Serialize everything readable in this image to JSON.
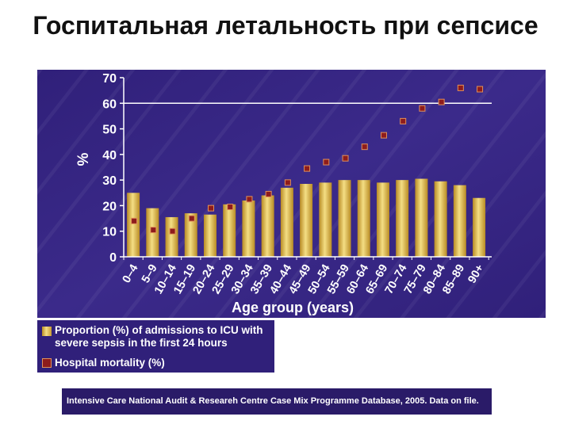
{
  "slide": {
    "title": "Госпитальная летальность при сепсисе"
  },
  "chart_data": {
    "type": "bar",
    "xlabel": "Age group (years)",
    "ylabel": "%",
    "ylim": [
      0,
      70
    ],
    "yticks": [
      0,
      10,
      20,
      30,
      40,
      50,
      60,
      70
    ],
    "hlines": [
      60
    ],
    "grid": false,
    "legend": "below-left",
    "categories": [
      "0–4",
      "5–9",
      "10–14",
      "15–19",
      "20–24",
      "25–29",
      "30–34",
      "35–39",
      "40–44",
      "45–49",
      "50–54",
      "55–59",
      "60–64",
      "65–69",
      "70–74",
      "75–79",
      "80–84",
      "85–89",
      "90+"
    ],
    "series": [
      {
        "name": "Proportion (%) of admissions to ICU with\nsevere sepsis in the first 24 hours",
        "type": "bar",
        "values": [
          25,
          19,
          15.5,
          17,
          16.5,
          20.5,
          22,
          24,
          27,
          28.5,
          29,
          30,
          30,
          29,
          30,
          30.5,
          29.5,
          28,
          23
        ]
      },
      {
        "name": "Hospital mortality (%)",
        "type": "scatter",
        "values": [
          14,
          10.5,
          10,
          15,
          19,
          19.5,
          22.5,
          24.5,
          29,
          34.5,
          37,
          38.5,
          43,
          47.5,
          53,
          58,
          60.5,
          66,
          65.5
        ]
      }
    ]
  },
  "footer": {
    "source": "Intensive Care National Audit & Researeh Centre Case Mix Programme Database, 2005. Data on file."
  },
  "colors": {
    "chart_background": "#30207a",
    "chart_background_light": "#3b2a8a",
    "bar_highlight": "#f4de84",
    "bar_shadow": "#b88b24",
    "marker_fill": "#8e1c1c",
    "marker_edge": "#e0905a",
    "axis": "#ffffff"
  }
}
